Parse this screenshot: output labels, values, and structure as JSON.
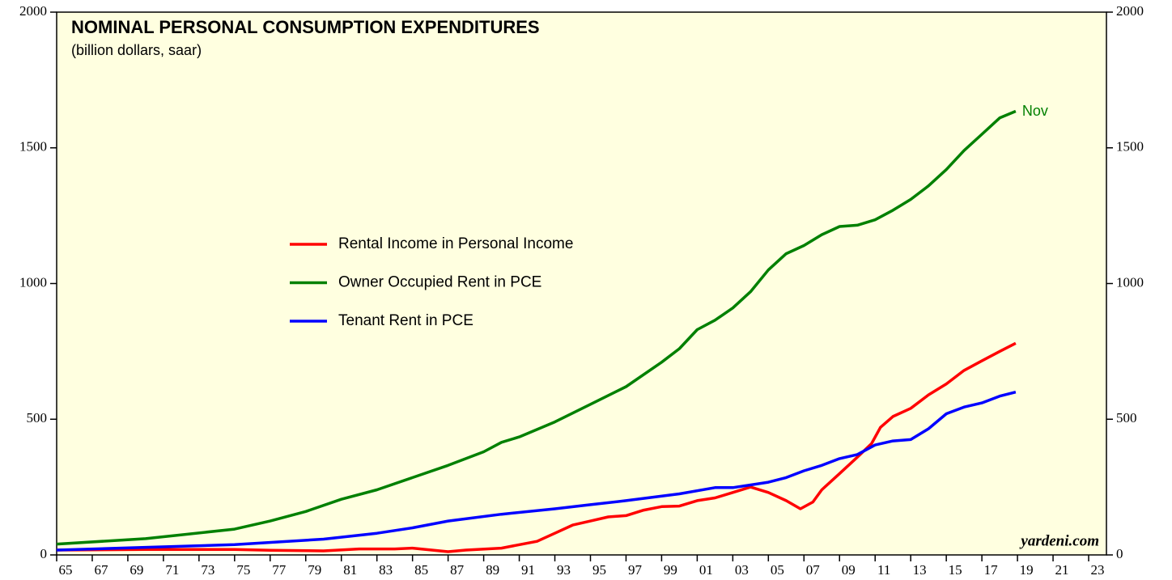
{
  "chart_data": {
    "type": "line",
    "title": "NOMINAL PERSONAL CONSUMPTION EXPENDITURES",
    "subtitle": "(billion dollars, saar)",
    "annotations": [
      "Nov",
      "yardeni.com"
    ],
    "legend": "center left",
    "xlim": [
      1965,
      2024
    ],
    "xticks": [
      {
        "value": 1965,
        "label": "65"
      },
      {
        "value": 1967,
        "label": "67"
      },
      {
        "value": 1969,
        "label": "69"
      },
      {
        "value": 1971,
        "label": "71"
      },
      {
        "value": 1973,
        "label": "73"
      },
      {
        "value": 1975,
        "label": "75"
      },
      {
        "value": 1977,
        "label": "77"
      },
      {
        "value": 1979,
        "label": "79"
      },
      {
        "value": 1981,
        "label": "81"
      },
      {
        "value": 1983,
        "label": "83"
      },
      {
        "value": 1985,
        "label": "85"
      },
      {
        "value": 1987,
        "label": "87"
      },
      {
        "value": 1989,
        "label": "89"
      },
      {
        "value": 1991,
        "label": "91"
      },
      {
        "value": 1993,
        "label": "93"
      },
      {
        "value": 1995,
        "label": "95"
      },
      {
        "value": 1997,
        "label": "97"
      },
      {
        "value": 1999,
        "label": "99"
      },
      {
        "value": 2001,
        "label": "01"
      },
      {
        "value": 2003,
        "label": "03"
      },
      {
        "value": 2005,
        "label": "05"
      },
      {
        "value": 2007,
        "label": "07"
      },
      {
        "value": 2009,
        "label": "09"
      },
      {
        "value": 2011,
        "label": "11"
      },
      {
        "value": 2013,
        "label": "13"
      },
      {
        "value": 2015,
        "label": "15"
      },
      {
        "value": 2017,
        "label": "17"
      },
      {
        "value": 2019,
        "label": "19"
      },
      {
        "value": 2021,
        "label": "21"
      },
      {
        "value": 2023,
        "label": "23"
      }
    ],
    "ylim": [
      0,
      2000
    ],
    "yticks": [
      0,
      500,
      1000,
      1500,
      2000
    ],
    "series": [
      {
        "name": "Rental Income in Personal Income",
        "color": "#ff0000",
        "x": [
          1965,
          1970,
          1975,
          1977,
          1980,
          1982,
          1984,
          1985,
          1987,
          1988,
          1990,
          1992,
          1993,
          1994,
          1995,
          1996,
          1997,
          1998,
          1999,
          2000,
          2001,
          2002,
          2003,
          2004,
          2005,
          2006,
          2006.8,
          2007.5,
          2008,
          2009,
          2010,
          2010.8,
          2011.3,
          2012,
          2013,
          2014,
          2015,
          2016,
          2017,
          2018,
          2018.9
        ],
        "values": [
          18,
          20,
          20,
          17,
          15,
          22,
          22,
          25,
          12,
          18,
          25,
          50,
          80,
          110,
          125,
          140,
          145,
          165,
          178,
          180,
          200,
          210,
          230,
          250,
          230,
          200,
          170,
          195,
          240,
          300,
          360,
          410,
          470,
          510,
          540,
          590,
          630,
          680,
          715,
          750,
          780
        ]
      },
      {
        "name": "Owner Occupied Rent in PCE",
        "color": "#008000",
        "x": [
          1965,
          1970,
          1975,
          1977,
          1979,
          1981,
          1983,
          1985,
          1987,
          1989,
          1990,
          1991,
          1993,
          1995,
          1997,
          1999,
          2000,
          2001,
          2002,
          2003,
          2004,
          2005,
          2006,
          2007,
          2008,
          2009,
          2010,
          2011,
          2012,
          2013,
          2014,
          2015,
          2016,
          2017,
          2018,
          2018.9
        ],
        "values": [
          40,
          60,
          95,
          125,
          160,
          205,
          240,
          285,
          330,
          380,
          415,
          435,
          490,
          555,
          620,
          710,
          760,
          830,
          865,
          910,
          970,
          1050,
          1110,
          1140,
          1180,
          1210,
          1215,
          1235,
          1270,
          1310,
          1360,
          1420,
          1490,
          1550,
          1610,
          1635
        ]
      },
      {
        "name": "Tenant Rent in PCE",
        "color": "#0000ff",
        "x": [
          1965,
          1970,
          1975,
          1980,
          1983,
          1985,
          1987,
          1990,
          1993,
          1995,
          1997,
          2000,
          2002,
          2003,
          2005,
          2006,
          2007,
          2008,
          2009,
          2010,
          2011,
          2012,
          2013,
          2014,
          2015,
          2016,
          2017,
          2018,
          2018.9
        ],
        "values": [
          18,
          28,
          38,
          58,
          80,
          100,
          125,
          150,
          170,
          185,
          200,
          225,
          248,
          248,
          268,
          285,
          310,
          330,
          355,
          370,
          405,
          420,
          425,
          465,
          520,
          545,
          560,
          585,
          600
        ]
      }
    ]
  }
}
